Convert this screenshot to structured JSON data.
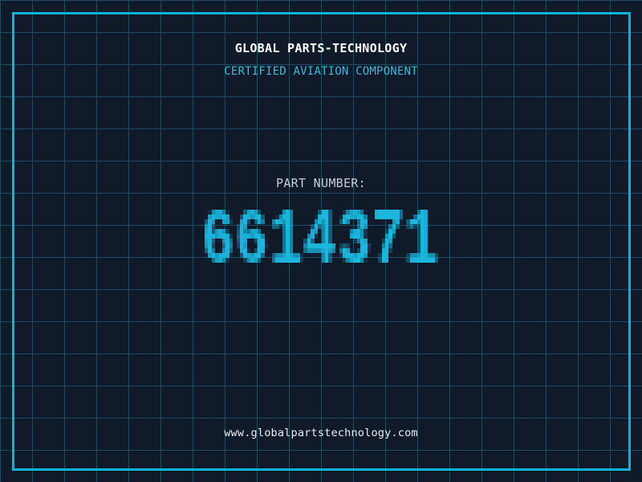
{
  "page": {
    "title": "GLOBAL PARTS-TECHNOLOGY",
    "subtitle": "CERTIFIED AVIATION COMPONENT",
    "part_label": "PART NUMBER:",
    "part_number": "6614371",
    "website": "www.globalpartstechnology.com"
  },
  "colors": {
    "background": "#101a29",
    "grid_line": "#1c4d62",
    "frame_border": "#0fb3da",
    "title": "#ffffff",
    "subtitle": "#3fb9d9",
    "part_label": "#c5ccd6",
    "part_number": "#1cb5dc",
    "website": "#e9edf2"
  }
}
